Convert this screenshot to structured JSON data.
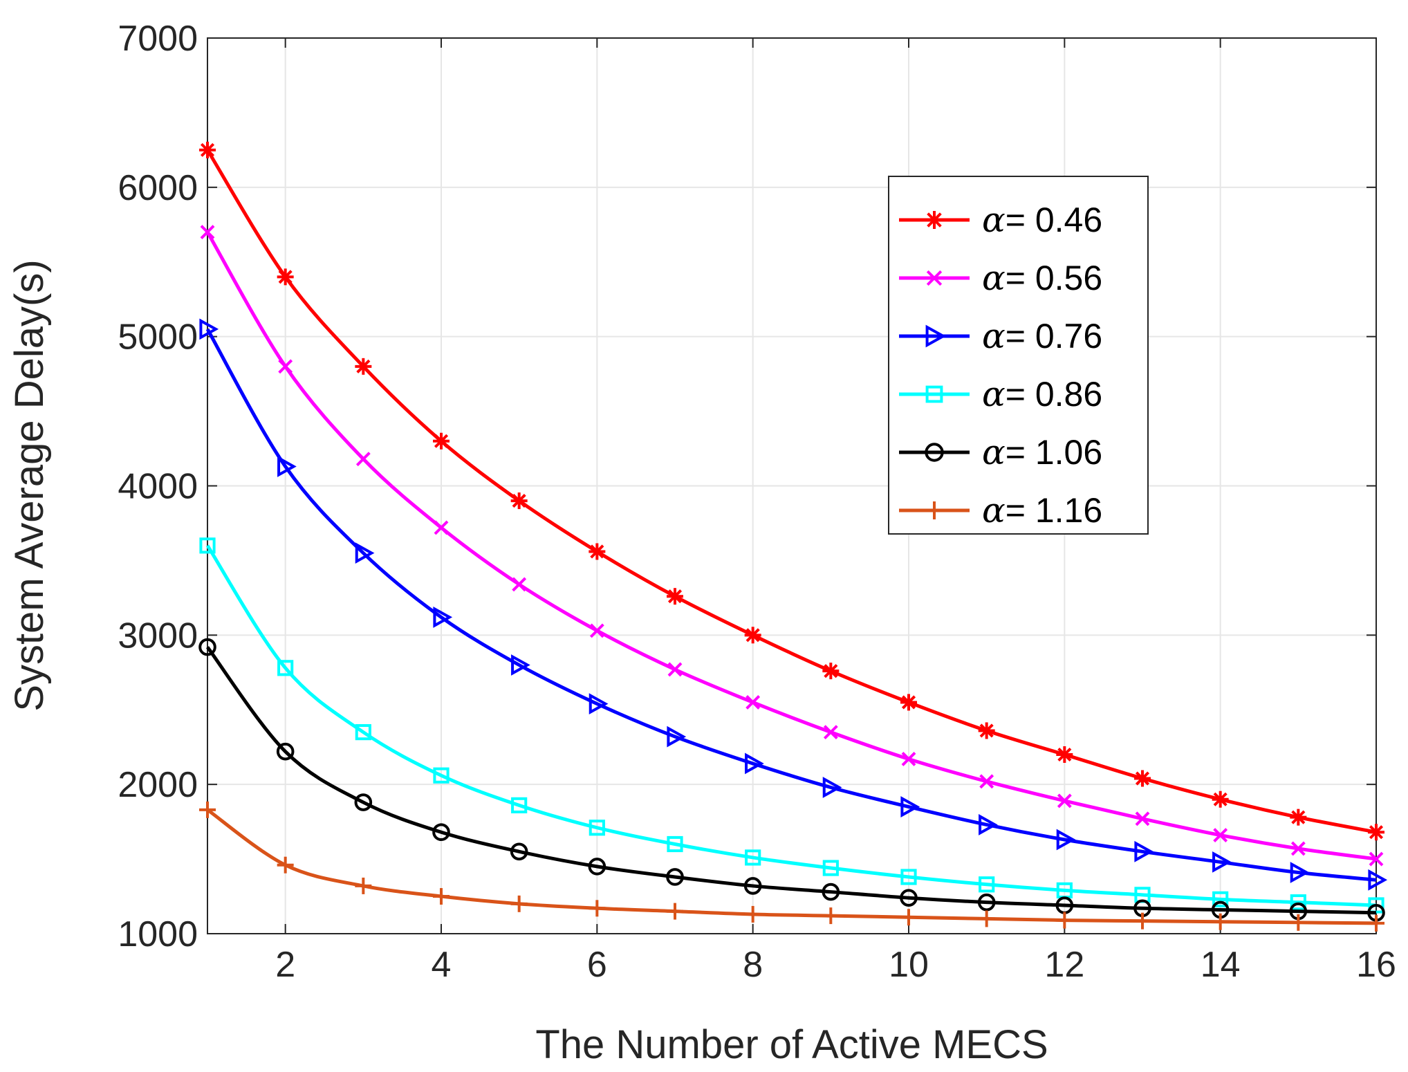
{
  "chart_data": {
    "type": "line",
    "title": "",
    "xlabel": "The Number of Active MECS",
    "ylabel": "System Average Delay(s)",
    "xlim": [
      1,
      16
    ],
    "ylim": [
      1000,
      7000
    ],
    "xticks": [
      2,
      4,
      6,
      8,
      10,
      12,
      14,
      16
    ],
    "yticks": [
      1000,
      2000,
      3000,
      4000,
      5000,
      6000,
      7000
    ],
    "grid": true,
    "legend_position": "top-right",
    "x": [
      1,
      2,
      3,
      4,
      5,
      6,
      7,
      8,
      9,
      10,
      11,
      12,
      13,
      14,
      15,
      16
    ],
    "series": [
      {
        "name": "α= 0.46",
        "greek": "α",
        "label": "= 0.46",
        "color": "#ff0000",
        "marker": "asterisk",
        "values": [
          6250,
          5400,
          4800,
          4300,
          3900,
          3560,
          3260,
          3000,
          2760,
          2550,
          2360,
          2200,
          2040,
          1900,
          1780,
          1680
        ]
      },
      {
        "name": "α= 0.56",
        "greek": "α",
        "label": "= 0.56",
        "color": "#ff00ff",
        "marker": "x",
        "values": [
          5700,
          4800,
          4180,
          3720,
          3340,
          3030,
          2770,
          2550,
          2350,
          2170,
          2020,
          1890,
          1770,
          1660,
          1570,
          1500
        ]
      },
      {
        "name": "α= 0.76",
        "greek": "α",
        "label": "= 0.76",
        "color": "#0000ff",
        "marker": "triangle-right",
        "values": [
          5050,
          4130,
          3550,
          3120,
          2800,
          2540,
          2320,
          2140,
          1980,
          1850,
          1730,
          1630,
          1550,
          1480,
          1410,
          1360
        ]
      },
      {
        "name": "α= 0.86",
        "greek": "α",
        "label": "= 0.86",
        "color": "#00ffff",
        "marker": "square",
        "values": [
          3600,
          2780,
          2350,
          2060,
          1860,
          1710,
          1600,
          1510,
          1440,
          1380,
          1330,
          1290,
          1260,
          1230,
          1210,
          1190
        ]
      },
      {
        "name": "α= 1.06",
        "greek": "α",
        "label": "= 1.06",
        "color": "#000000",
        "marker": "circle",
        "values": [
          2920,
          2220,
          1880,
          1680,
          1550,
          1450,
          1380,
          1320,
          1280,
          1240,
          1210,
          1190,
          1170,
          1160,
          1150,
          1140
        ]
      },
      {
        "name": "α= 1.16",
        "greek": "α",
        "label": "= 1.16",
        "color": "#d95319",
        "marker": "plus",
        "values": [
          1830,
          1460,
          1320,
          1250,
          1200,
          1170,
          1150,
          1130,
          1120,
          1110,
          1100,
          1090,
          1085,
          1080,
          1075,
          1070
        ]
      }
    ]
  }
}
